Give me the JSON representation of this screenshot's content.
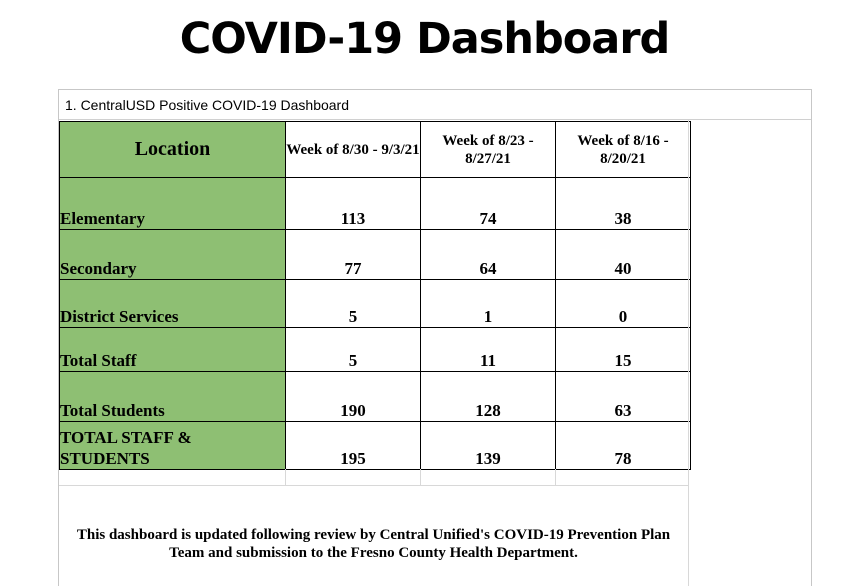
{
  "page": {
    "title": "COVID-19 Dashboard"
  },
  "sheet": {
    "caption": "1. CentralUSD Positive COVID-19 Dashboard"
  },
  "table": {
    "headers": [
      "Location",
      "Week of 8/30 - 9/3/21",
      "Week of 8/23 - 8/27/21",
      "Week of 8/16 - 8/20/21"
    ],
    "rows": [
      {
        "label": "Elementary",
        "values": [
          "113",
          "74",
          "38"
        ]
      },
      {
        "label": "Secondary",
        "values": [
          "77",
          "64",
          "40"
        ]
      },
      {
        "label": "District Services",
        "values": [
          "5",
          "1",
          "0"
        ]
      },
      {
        "label": "Total Staff",
        "values": [
          "5",
          "11",
          "15"
        ]
      },
      {
        "label": "Total Students",
        "values": [
          "190",
          "128",
          "63"
        ]
      },
      {
        "label": "TOTAL STAFF & STUDENTS",
        "values": [
          "195",
          "139",
          "78"
        ]
      }
    ]
  },
  "footnote": "This dashboard is updated following review by Central Unified's COVID-19 Prevention Plan Team and submission to the Fresno County Health Department.",
  "colors": {
    "header_green": "#8ebf73",
    "border": "#000000",
    "grid": "#d8d8d8"
  }
}
